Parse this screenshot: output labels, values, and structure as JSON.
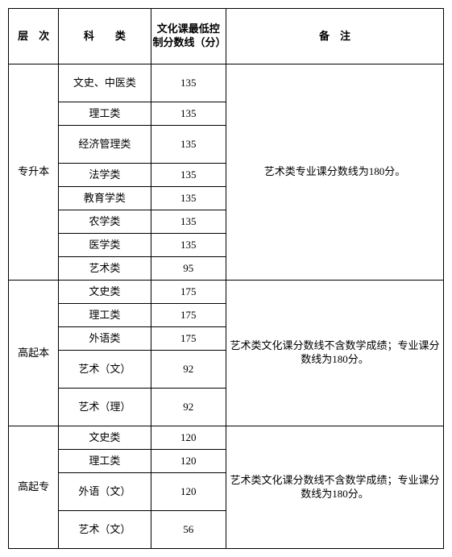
{
  "headers": {
    "level": "层　次",
    "subject": "科　　类",
    "score": "文化课最低控制分数线（分）",
    "remark": "备　注"
  },
  "groups": [
    {
      "level": "专升本",
      "remark": "艺术类专业课分数线为180分。",
      "rows": [
        {
          "subject": "文史、中医类",
          "score": "135",
          "h": "tall"
        },
        {
          "subject": "理工类",
          "score": "135",
          "h": "short"
        },
        {
          "subject": "经济管理类",
          "score": "135",
          "h": "tall"
        },
        {
          "subject": "法学类",
          "score": "135",
          "h": "short"
        },
        {
          "subject": "教育学类",
          "score": "135",
          "h": "short"
        },
        {
          "subject": "农学类",
          "score": "135",
          "h": "short"
        },
        {
          "subject": "医学类",
          "score": "135",
          "h": "short"
        },
        {
          "subject": "艺术类",
          "score": "95",
          "h": "short"
        }
      ]
    },
    {
      "level": "高起本",
      "remark": "艺术类文化课分数线不含数学成绩；专业课分数线为180分。",
      "rows": [
        {
          "subject": "文史类",
          "score": "175",
          "h": "short"
        },
        {
          "subject": "理工类",
          "score": "175",
          "h": "short"
        },
        {
          "subject": "外语类",
          "score": "175",
          "h": "short"
        },
        {
          "subject": "艺术（文）",
          "score": "92",
          "h": "tall"
        },
        {
          "subject": "艺术（理）",
          "score": "92",
          "h": "tall"
        }
      ]
    },
    {
      "level": "高起专",
      "remark": "艺术类文化课分数线不含数学成绩；专业课分数线为180分。",
      "rows": [
        {
          "subject": "文史类",
          "score": "120",
          "h": "short"
        },
        {
          "subject": "理工类",
          "score": "120",
          "h": "short"
        },
        {
          "subject": "外语（文）",
          "score": "120",
          "h": "tall"
        },
        {
          "subject": "艺术（文）",
          "score": "56",
          "h": "tall"
        }
      ]
    }
  ]
}
